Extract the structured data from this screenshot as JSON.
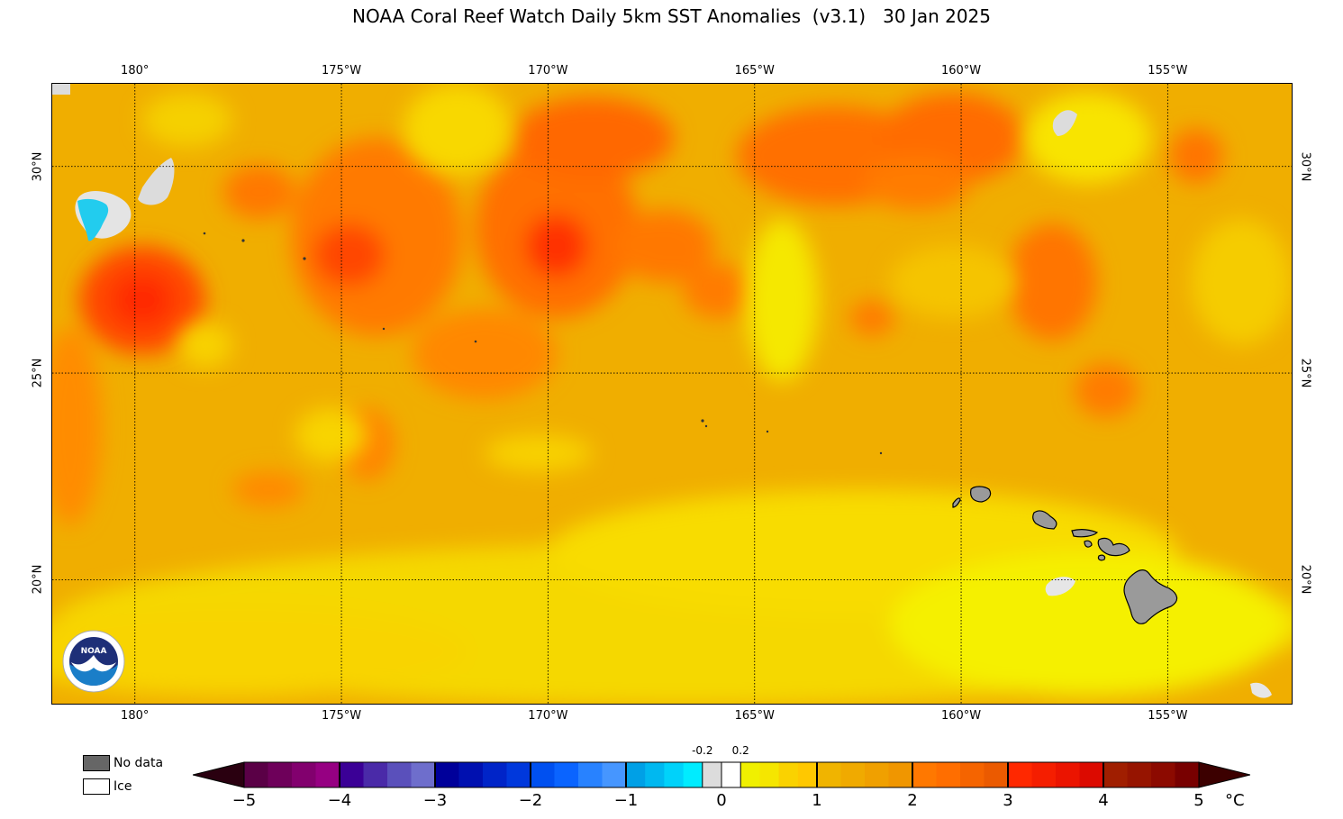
{
  "title": "NOAA Coral Reef Watch Daily 5km SST Anomalies  (v3.1)   30 Jan 2025",
  "map": {
    "lon_labels": [
      "180°",
      "175°W",
      "170°W",
      "165°W",
      "160°W",
      "155°W"
    ],
    "lat_labels": [
      "30°N",
      "25°N",
      "20°N"
    ],
    "lon_values": [
      -180,
      -175,
      -170,
      -165,
      -160,
      -155
    ],
    "lat_values": [
      30,
      25,
      20
    ],
    "extent": {
      "lon_min": -182,
      "lon_max": -152,
      "lat_min": 17,
      "lat_max": 32
    },
    "islands": [
      "Kauai",
      "Niihau",
      "Oahu",
      "Molokai",
      "Maui",
      "Lanai",
      "Kahoolawe",
      "Hawaii"
    ],
    "colors": {
      "land": "#9a9a9a",
      "ice": "#dcdcdc",
      "cold_patch": "#22ccee"
    }
  },
  "legend": {
    "no_data_label": "No data",
    "ice_label": "Ice",
    "no_data_color": "#666666",
    "ice_color": "#ffffff"
  },
  "colorbar": {
    "ticks": [
      "−5",
      "−4",
      "−3",
      "−2",
      "−1",
      "0",
      "1",
      "2",
      "3",
      "4",
      "5"
    ],
    "small_ticks": [
      "-0.2",
      "0.2"
    ],
    "unit": "°C",
    "range": [
      -5,
      5
    ],
    "segment_colors": [
      "#5a0046",
      "#6e005a",
      "#82006e",
      "#960082",
      "#3b0096",
      "#4a2aa8",
      "#5a50bb",
      "#6e6ecc",
      "#00009a",
      "#0010b0",
      "#0024c8",
      "#0038dc",
      "#0050f0",
      "#0a64ff",
      "#2882ff",
      "#4696ff",
      "#00a0e6",
      "#00b8f0",
      "#00d2fa",
      "#00ecff",
      "#dcdcdc",
      "#ffffff",
      "#f0f000",
      "#f5e600",
      "#fad200",
      "#ffc800",
      "#f0b400",
      "#f0aa00",
      "#f0a000",
      "#f09600",
      "#ff7800",
      "#ff6e00",
      "#f56400",
      "#eb5a00",
      "#ff2800",
      "#f51e00",
      "#eb1400",
      "#dc0a00",
      "#a01e00",
      "#961400",
      "#8c0a00",
      "#780000"
    ],
    "end_low_color": "#2a0010",
    "end_high_color": "#3c0000"
  }
}
